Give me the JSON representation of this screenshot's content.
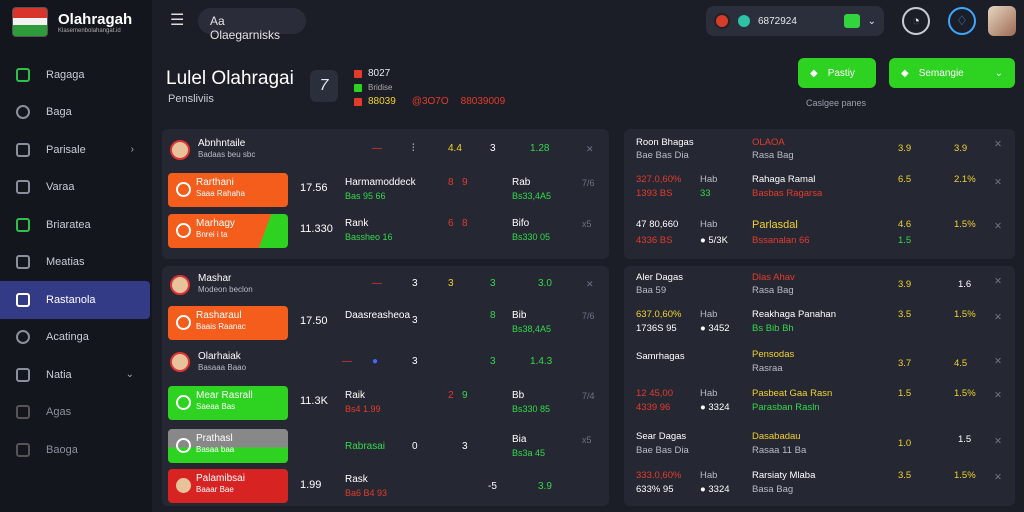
{
  "app": {
    "title": "Olahragah",
    "subtitle": "Klasemenbolahangat.id"
  },
  "colors": {
    "accent_green": "#2ed322",
    "accent_orange": "#f45d1c",
    "accent_red": "#e53b2b",
    "nav_active": "#333a86"
  },
  "sidebar": {
    "items": [
      {
        "label": "Ragaga",
        "icon": "chart-icon"
      },
      {
        "label": "Baga",
        "icon": "search-icon"
      },
      {
        "label": "Parisale",
        "icon": "send-icon"
      },
      {
        "label": "Varaa",
        "icon": "calendar-icon"
      },
      {
        "label": "Briaratea",
        "icon": "trophy-icon"
      },
      {
        "label": "Meatias",
        "icon": "bag-icon"
      },
      {
        "label": "Rastanola",
        "icon": "list-icon"
      },
      {
        "label": "Acatinga",
        "icon": "gear-icon"
      },
      {
        "label": "Natia",
        "icon": "user-icon"
      },
      {
        "label": "Agas",
        "icon": "doc-icon"
      },
      {
        "label": "Baoga",
        "icon": "image-icon"
      }
    ]
  },
  "topbar": {
    "search_text": "Aa  Olaegarnisks",
    "balance": "6872924"
  },
  "header": {
    "title": "Lulel Olahragai",
    "subtitle": "Pensliviis",
    "score": "7",
    "legend": [
      {
        "label": "8027",
        "color": "#e53b2b"
      },
      {
        "label": "Bridise",
        "color": "#2ed322"
      },
      {
        "label": "88039",
        "color": "#e53b2b"
      }
    ],
    "legend_extra": [
      {
        "label": "@3O7O",
        "color": "#f1d22d"
      },
      {
        "label": "88039009",
        "color": "#e53b2b"
      }
    ],
    "btn1": "Pastiy",
    "btn2": "Semangie",
    "compare": "Caslgee panes"
  },
  "left1": {
    "head": {
      "name": "Abnhntaile",
      "sub": "Badaas beu sbc",
      "c2": "4.4",
      "c3": "3",
      "c4": "1.28"
    },
    "rows": [
      {
        "name": "Rarthani",
        "sub": "Saaa Rahaha",
        "odd": "17.56",
        "label": "Harmamoddeck",
        "label2": "Bas 95 66",
        "a": "8",
        "b": "9",
        "c": "Rab",
        "d": "Bs33,4A5",
        "x": "7/6"
      },
      {
        "name": "Marhagy",
        "sub": "Bnrei i ta",
        "odd": "11.330",
        "label": "Rank",
        "label2": "Bassheo 16",
        "a": "6",
        "b": "8",
        "c": "Bifo",
        "d": "Bs330 05",
        "x": "x5"
      }
    ]
  },
  "left2": {
    "head": {
      "name": "Mashar",
      "sub": "Modeon beclon",
      "c1": "3",
      "c2": "3",
      "c3": "3",
      "c4": "3.0"
    },
    "rows": [
      {
        "name": "Rasharaul",
        "sub": "Baais Raanac",
        "odd": "17.50",
        "label": "Daasreasheoa",
        "label2": "",
        "a": "3",
        "b": "8",
        "c": "Bib",
        "d": "Bs38,4A5",
        "x": "7/6"
      },
      {
        "name": "Olarhaiak",
        "sub": "Basaaa Baao",
        "odd": "",
        "label": "",
        "label2": "",
        "a": "3",
        "b": "3",
        "c": "",
        "d": "1.4.3",
        "x": ""
      },
      {
        "name": "Mear Rasrall",
        "sub": "Saeaa Bas",
        "odd": "11.3K",
        "label": "Raik",
        "label2": "Bs4 1.99",
        "a": "2",
        "b": "9",
        "c": "Bb",
        "d": "Bs330 85",
        "x": "7/4"
      },
      {
        "name": "Prathasl",
        "sub": "Basaa baa",
        "odd": "",
        "label": "Rabrasai",
        "label2": "",
        "a": "0",
        "b": "3",
        "c": "Bia",
        "d": "Bs3a 45",
        "x": "x5"
      },
      {
        "name": "Palamibsai",
        "sub": "Baaar Bae",
        "odd": "1.99",
        "label": "Rask",
        "label2": "Ba6 B4 93",
        "a": "-5",
        "b": "",
        "c": "",
        "d": "3.9",
        "x": ""
      }
    ]
  },
  "right1": {
    "rows": [
      {
        "l1": "Roon Bhagas",
        "l2": "Bae Bas Dia",
        "m1": "OLAOA",
        "m2": "Rasa Bag",
        "v1": "3.9",
        "v2": "3.9"
      },
      {
        "l1": "327.0,60%",
        "l2": "1393 BS",
        "m1": "Rahaga Ramal",
        "m2": "Basbas Ragarsa",
        "v1": "6.5",
        "v2": "2.1%"
      },
      {
        "l1": "47 80,660",
        "l2": "4336 BS",
        "m1": "Parlasdal",
        "m2": "Bssanalan 66",
        "v1": "4.6",
        "v2": "1.5%"
      }
    ]
  },
  "right2": {
    "rows": [
      {
        "l1": "Aler Dagas",
        "l2": "Baa 59",
        "m1": "Dlas Ahav",
        "m2": "Rasa Bag",
        "v1": "3.9",
        "v2": "1.6"
      },
      {
        "l1": "637.0,60%",
        "l2": "1736S 95",
        "m1": "Reakhaga Panahan",
        "m2": "Bs Bib Bh",
        "v1": "3.5",
        "v2": "1.5%"
      },
      {
        "l1": "Samrhagas",
        "l2": "",
        "m1": "Pensodas",
        "m2": "Rasraa",
        "v1": "3.7",
        "v2": "4.5"
      },
      {
        "l1": "12 45,00",
        "l2": "4339 96",
        "m1": "Pasbeat Gaa Rasn",
        "m2": "Parasban Rasln",
        "v1": "1.5",
        "v2": "1.5%"
      },
      {
        "l1": "Sear Dagas",
        "l2": "Bae Bas Dia",
        "m1": "Dasabadau",
        "m2": "Rasaa 11 Ba",
        "v1": "1.0",
        "v2": "1.5"
      },
      {
        "l1": "333.0,60%",
        "l2": "633% 95",
        "m1": "Rarsiaty Mlaba",
        "m2": "Basa Bag",
        "v1": "3.5",
        "v2": "1.5%"
      }
    ]
  }
}
